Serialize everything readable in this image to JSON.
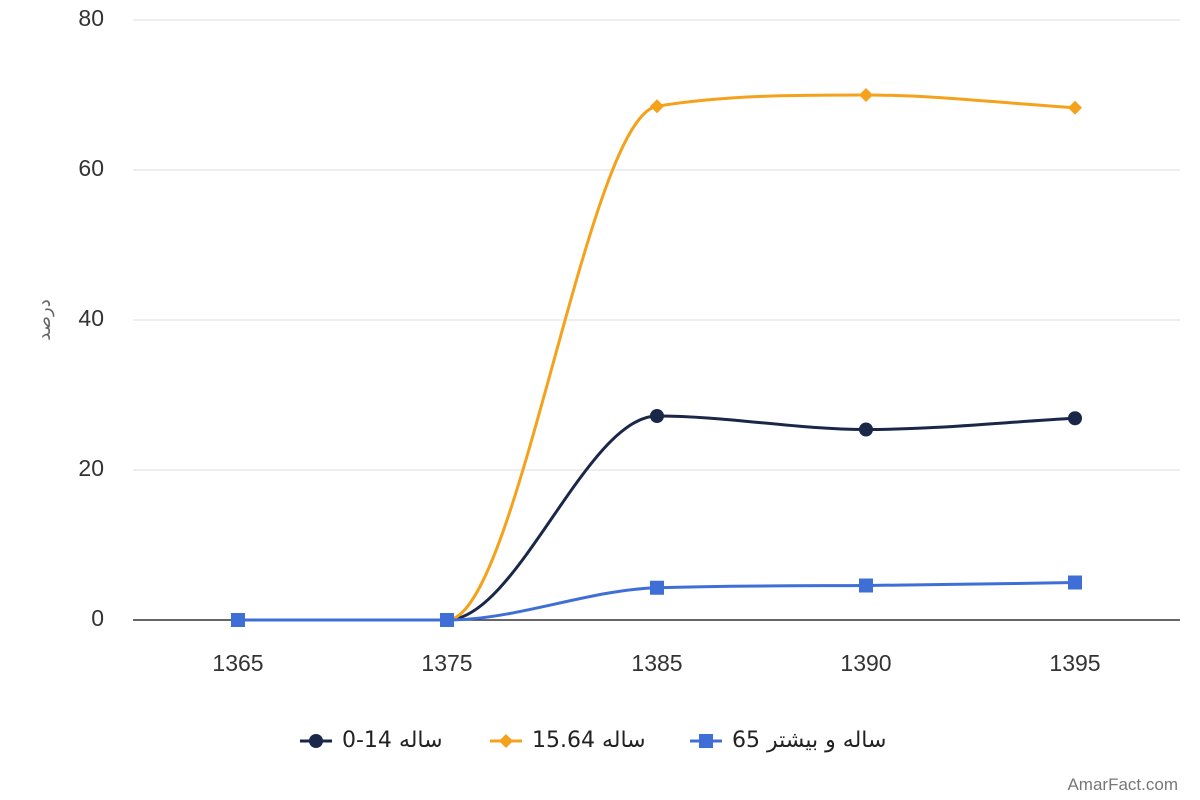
{
  "chart_data": {
    "type": "line",
    "categories": [
      "1365",
      "1375",
      "1385",
      "1390",
      "1395"
    ],
    "ylabel": "درصد",
    "ylim": [
      0,
      80
    ],
    "y_ticks": [
      "0",
      "20",
      "40",
      "60",
      "80"
    ],
    "grid": true,
    "legend_position": "bottom",
    "series": [
      {
        "name": "0-14 ساله",
        "values": [
          0,
          0,
          27.2,
          25.4,
          26.9
        ],
        "marker": "circle",
        "color": "#1a2749"
      },
      {
        "name": "15.64 ساله",
        "values": [
          0,
          0,
          68.5,
          70.0,
          68.3
        ],
        "marker": "diamond",
        "color": "#f4a21c"
      },
      {
        "name": "65 ساله و بیشتر",
        "values": [
          0,
          0,
          4.3,
          4.6,
          5.0
        ],
        "marker": "square",
        "color": "#3f6fd6"
      }
    ]
  },
  "watermark": "AmarFact.com"
}
